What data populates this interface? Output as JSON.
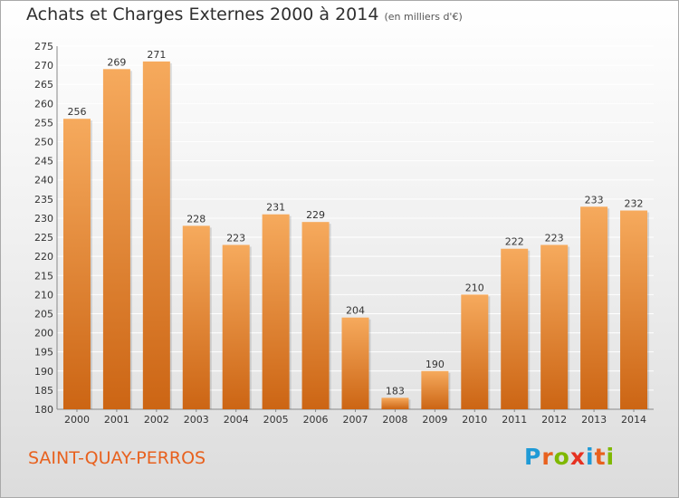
{
  "header": {
    "title": "Achats et Charges Externes 2000 à 2014",
    "unit": "(en milliers d'€)"
  },
  "footer": {
    "city": "SAINT-QUAY-PERROS",
    "logo_letters": [
      "P",
      "r",
      "o",
      "x",
      "i",
      "t",
      "i"
    ],
    "logo_colors": [
      "#1f9ad6",
      "#e8611e",
      "#7fb800",
      "#e63121",
      "#1f9ad6",
      "#e8611e",
      "#7fb800"
    ]
  },
  "colors": {
    "bar_top": "#f6aa5d",
    "bar_bottom": "#cc6514",
    "city_text": "#e8611e"
  },
  "chart_data": {
    "type": "bar",
    "title": "Achats et Charges Externes 2000 à 2014",
    "subtitle": "(en milliers d'€)",
    "categories": [
      "2000",
      "2001",
      "2002",
      "2003",
      "2004",
      "2005",
      "2006",
      "2007",
      "2008",
      "2009",
      "2010",
      "2011",
      "2012",
      "2013",
      "2014"
    ],
    "values": [
      256,
      269,
      271,
      228,
      223,
      231,
      229,
      204,
      183,
      190,
      210,
      222,
      223,
      233,
      232
    ],
    "ylim": [
      180,
      275
    ],
    "yticks": [
      180,
      185,
      190,
      195,
      200,
      205,
      210,
      215,
      220,
      225,
      230,
      235,
      240,
      245,
      250,
      255,
      260,
      265,
      270,
      275
    ],
    "xlabel": "",
    "ylabel": "",
    "grid": true,
    "legend": "none"
  }
}
